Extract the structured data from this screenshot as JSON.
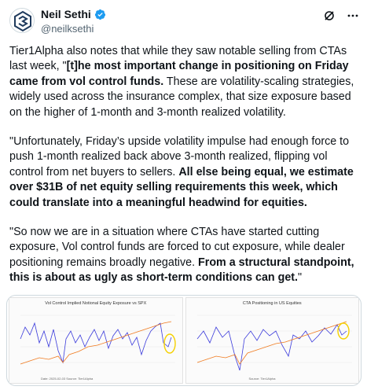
{
  "author": {
    "name": "Neil Sethi",
    "handle": "@neilksethi",
    "avatar_icon": "avatar-logo-icon",
    "verified_color": "#1d9bf0"
  },
  "actions": {
    "grok_icon": "grok-icon",
    "more_icon": "more-dots-icon"
  },
  "post": {
    "p1_a": "Tier1Alpha also notes that while they saw notable selling from CTAs last week, \"",
    "p1_b": "[t]he most important change in positioning on Friday came from vol control funds.",
    "p1_c": " These are volatility-scaling strategies, widely used across the insurance complex, that size exposure based on the higher of 1-month and 3-month realized volatility.",
    "p2_a": "\"Unfortunately, Friday’s upside volatility impulse had enough force to push 1-month realized back above 3-month realized, flipping vol control from net buyers to sellers. ",
    "p2_b": "All else being equal, we estimate over $31B of net equity selling requirements this week, which could translate into a meaningful headwind for equities.",
    "p3_a": "\"So now we are in a situation where CTAs have started cutting exposure, Vol control funds are forced to cut exposure, while dealer positioning remains broadly negative. ",
    "p3_b": "From a structural standpoint, this is about as ugly as short-term conditions can get.",
    "p3_c": "\""
  },
  "media": {
    "chart1_title": "Vol Control Implied Notional Equity Exposure vs SPX",
    "chart2_title": "CTA Positioning in US Equities",
    "chart1_source": "Date: 2025-02-03   Source: Tier1Alpha",
    "chart2_source": "Source: Tier1Alpha",
    "series1_color": "#3a3adb",
    "series2_color": "#f07a1e",
    "highlight_color": "#f5d000"
  }
}
